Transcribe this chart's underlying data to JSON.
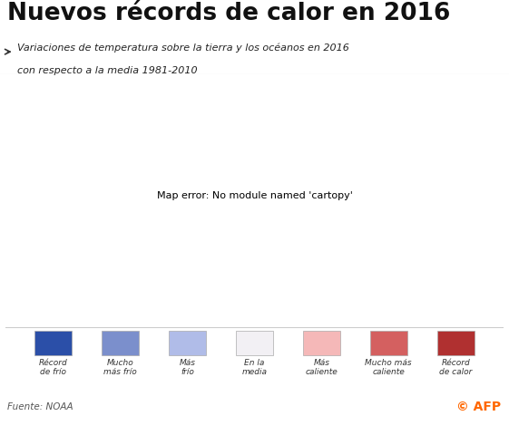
{
  "title": "Nuevos récords de calor en 2016",
  "subtitle_line1": "Variaciones de temperatura sobre la tierra y los océanos en 2016",
  "subtitle_line2": "con respecto a la media 1981-2010",
  "source": "Fuente: NOAA",
  "copyright": "© AFP",
  "legend_colors": [
    "#2b4fa8",
    "#7b8fcc",
    "#b0bce8",
    "#f2f0f4",
    "#f5b8b8",
    "#d46060",
    "#b03030"
  ],
  "legend_labels": [
    "Récord\nde frío",
    "Mucho\nmás frío",
    "Más\nfrío",
    "En la\nmedia",
    "Más\ncaliente",
    "Mucho más\ncaliente",
    "Récord\nde calor"
  ],
  "bg_color": "#ffffff",
  "title_color": "#111111",
  "subtitle_color": "#222222",
  "source_color": "#555555",
  "map_bg": "#c0c0c0",
  "title_fontsize": 19,
  "subtitle_fontsize": 8,
  "legend_fontsize": 6.5,
  "source_fontsize": 7.5,
  "afp_color": "#ff6600"
}
